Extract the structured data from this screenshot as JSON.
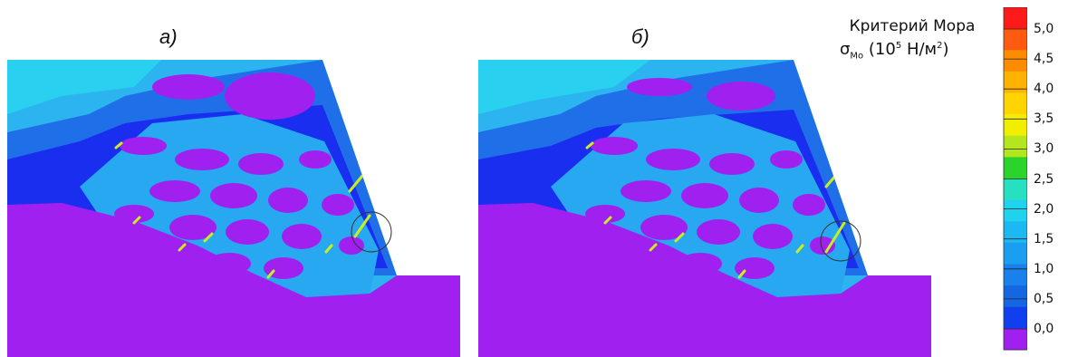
{
  "panels": [
    {
      "label": "а)",
      "id": "a"
    },
    {
      "label": "б)",
      "id": "b"
    }
  ],
  "legend": {
    "title": "Критерий Мора",
    "symbol": "σ",
    "symbol_subscript": "Mo",
    "unit_prefix": "(10",
    "unit_exponent": "5",
    "unit_suffix": " Н/м",
    "unit_suffix_exponent": "2",
    "unit_close": ")",
    "tick_labels": [
      "5,0",
      "4,5",
      "4,0",
      "3,5",
      "3,0",
      "2,5",
      "2,0",
      "1,5",
      "1,0",
      "0,5",
      "0,0"
    ],
    "colors": [
      "#ff1a1a",
      "#ff5a10",
      "#ff8c00",
      "#ffb300",
      "#ffd400",
      "#f2ee00",
      "#b4e61e",
      "#2ad42a",
      "#27e0c0",
      "#1fd2ee",
      "#1cb8f2",
      "#1c9ef0",
      "#1a80ec",
      "#1566e2",
      "#1040ee",
      "#a020f0"
    ]
  },
  "colors": {
    "background_mass": "#a020f0",
    "deep_blue": "#1a2ef0",
    "mid_blue": "#1f6fe8",
    "light_blue": "#27a8f0",
    "cyan": "#2cd4f2",
    "yellow_green": "#c8f020"
  }
}
